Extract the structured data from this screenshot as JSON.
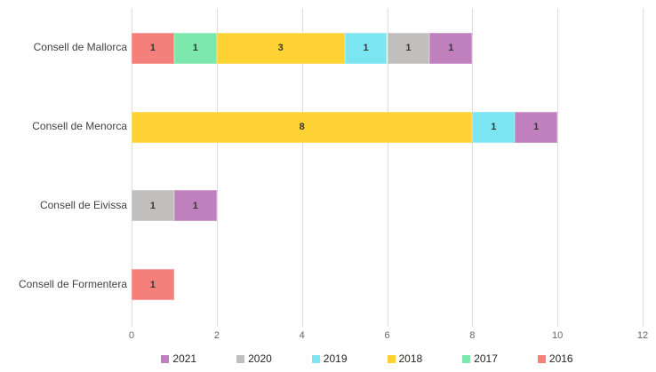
{
  "chart_data": {
    "type": "bar",
    "orientation": "horizontal-stacked",
    "categories": [
      "Consell de Mallorca",
      "Consell de Menorca",
      "Consell de Eivissa",
      "Consell de Formentera"
    ],
    "series": [
      {
        "name": "2016",
        "color": "#F5807B",
        "values": [
          1,
          0,
          0,
          1
        ]
      },
      {
        "name": "2017",
        "color": "#7CE8AB",
        "values": [
          1,
          0,
          0,
          0
        ]
      },
      {
        "name": "2018",
        "color": "#FFD233",
        "values": [
          3,
          8,
          0,
          0
        ]
      },
      {
        "name": "2019",
        "color": "#7CE5F2",
        "values": [
          1,
          1,
          0,
          0
        ]
      },
      {
        "name": "2020",
        "color": "#C0BFBE",
        "values": [
          1,
          0,
          1,
          0
        ]
      },
      {
        "name": "2021",
        "color": "#BF80BD",
        "values": [
          1,
          1,
          1,
          0
        ]
      }
    ],
    "x_ticks": [
      "0",
      "2",
      "4",
      "6",
      "8",
      "10",
      "12"
    ],
    "x_tick_values": [
      0,
      2,
      4,
      6,
      8,
      10,
      12
    ],
    "xlim": [
      0,
      12
    ],
    "grid": "vertical",
    "value_labels": true,
    "legend_order": [
      "2021",
      "2020",
      "2019",
      "2018",
      "2017",
      "2016"
    ],
    "legend_position": "bottom",
    "title": "",
    "xlabel": "",
    "ylabel": ""
  },
  "colors": {
    "gridline": "#DEDDDD",
    "axis_text": "#666666",
    "category_text": "#424242",
    "value_text": "#373737",
    "legend_text": "#252423",
    "background": "#FFFFFF"
  }
}
